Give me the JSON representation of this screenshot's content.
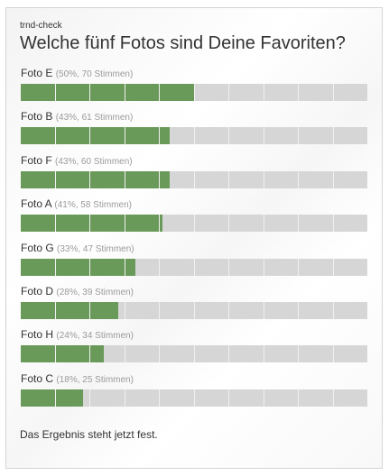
{
  "widget": {
    "small_title": "trnd-check",
    "question": "Welche fünf Fotos sind Deine Favoriten?",
    "footer": "Das Ergebnis steht jetzt fest."
  },
  "colors": {
    "bar_fill": "#6a9a59",
    "bar_track": "#d6d6d6"
  },
  "results": [
    {
      "label": "Foto E",
      "meta": "(50%, 70 Stimmen)",
      "percent": 50
    },
    {
      "label": "Foto B",
      "meta": "(43%, 61 Stimmen)",
      "percent": 43
    },
    {
      "label": "Foto F",
      "meta": "(43%, 60 Stimmen)",
      "percent": 43
    },
    {
      "label": "Foto A",
      "meta": "(41%, 58 Stimmen)",
      "percent": 41
    },
    {
      "label": "Foto G",
      "meta": "(33%, 47 Stimmen)",
      "percent": 33
    },
    {
      "label": "Foto D",
      "meta": "(28%, 39 Stimmen)",
      "percent": 28
    },
    {
      "label": "Foto H",
      "meta": "(24%, 34 Stimmen)",
      "percent": 24
    },
    {
      "label": "Foto C",
      "meta": "(18%, 25 Stimmen)",
      "percent": 18
    }
  ]
}
